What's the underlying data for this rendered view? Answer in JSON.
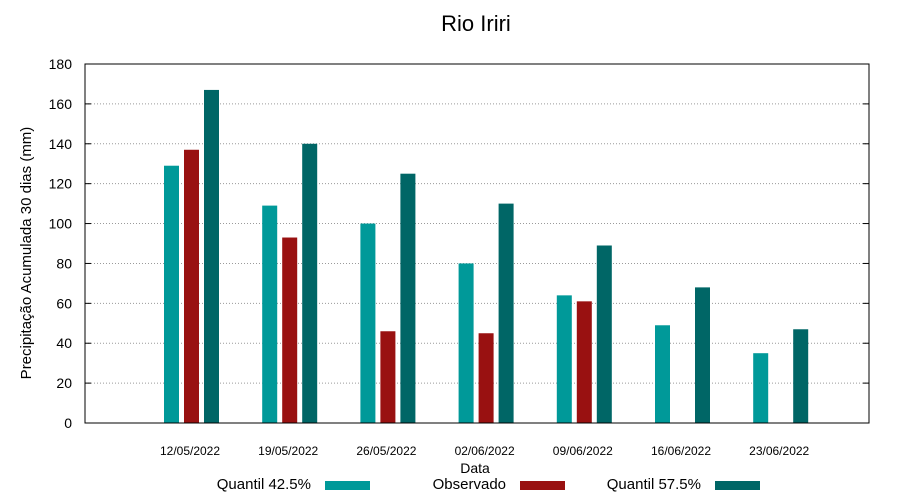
{
  "chart_data": {
    "type": "bar",
    "title": "Rio Iriri",
    "xlabel": "Data",
    "ylabel": "Precipitação Acumulada 30 dias (mm)",
    "ylim": [
      0,
      180
    ],
    "yticks": [
      0,
      20,
      40,
      60,
      80,
      100,
      120,
      140,
      160,
      180
    ],
    "grid": true,
    "legend_position": "bottom",
    "categories": [
      "12/05/2022",
      "19/05/2022",
      "26/05/2022",
      "02/06/2022",
      "09/06/2022",
      "16/06/2022",
      "23/06/2022"
    ],
    "series": [
      {
        "name": "Quantil 42.5%",
        "color": "#009999",
        "values": [
          129,
          109,
          100,
          80,
          64,
          49,
          35
        ]
      },
      {
        "name": "Observado",
        "color": "#991111",
        "values": [
          137,
          93,
          46,
          45,
          61,
          null,
          null
        ]
      },
      {
        "name": "Quantil 57.5%",
        "color": "#006666",
        "values": [
          167,
          140,
          125,
          110,
          89,
          68,
          47
        ]
      }
    ]
  }
}
